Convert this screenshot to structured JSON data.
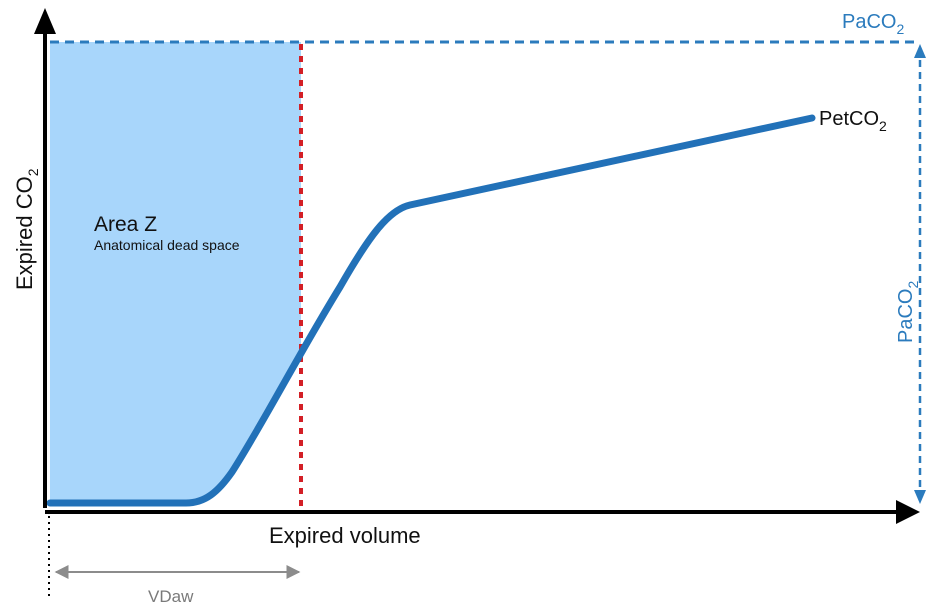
{
  "labels": {
    "y_axis": {
      "main": "Expired CO",
      "sub": "2"
    },
    "x_axis": "Expired volume",
    "area_title": "Area Z",
    "area_subtitle": "Anatomical dead space",
    "paco2_top": {
      "main": "PaCO",
      "sub": "2"
    },
    "paco2_side": {
      "main": "PaCO",
      "sub": "2"
    },
    "petco2": {
      "main": "PetCO",
      "sub": "2"
    },
    "vdaw": "VDaw"
  },
  "colors": {
    "curve": "#2271b8",
    "shaded_area": "#a8d6fb",
    "dashed_threshold": "#d31f26",
    "reference_line": "#2b7bbd",
    "axes": "#000000",
    "span_arrow": "#8c8c8c"
  }
}
